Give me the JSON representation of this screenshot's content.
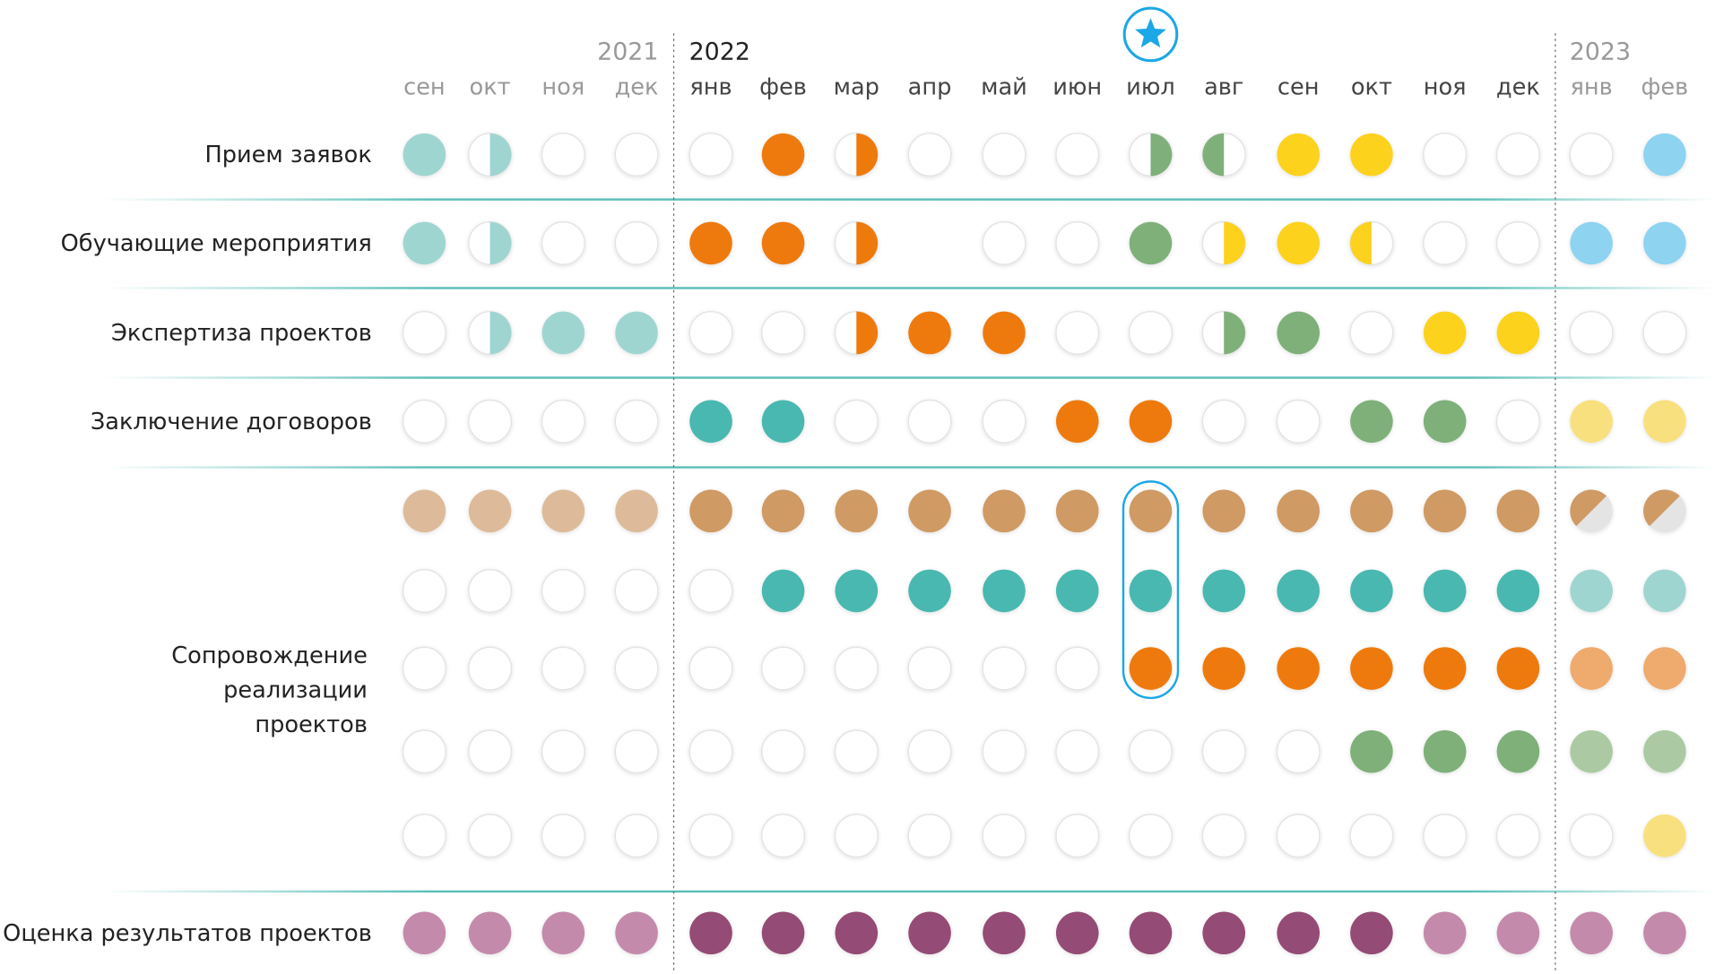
{
  "years": [
    {
      "year": "2021",
      "months": [
        "сен",
        "окт",
        "ноя",
        "дек"
      ]
    },
    {
      "year": "2022",
      "months": [
        "янв",
        "фев",
        "мар",
        "апр",
        "май",
        "июн",
        "июл",
        "авг",
        "сен",
        "окт",
        "ноя",
        "дек"
      ]
    },
    {
      "year": "2023",
      "months": [
        "янв",
        "фев"
      ]
    }
  ],
  "palette": {
    "tl": "#9fd5d1",
    "t": "#49b8b0",
    "o": "#ee7a0c",
    "ol": "#efaa6e",
    "g": "#7fb07a",
    "gl": "#abcaa3",
    "y": "#fcd21c",
    "yl": "#f8e07f",
    "b": "#8ed3f0",
    "tanl": "#ddbb9a",
    "tan": "#cf9a64",
    "pl": "#c48aab",
    "pd": "#944c74",
    "grey": "#e4e4e4"
  },
  "rows": [
    {
      "label": [
        "Прием заявок"
      ],
      "tracks": [
        [
          "tl",
          "tl/R",
          "e",
          "e",
          "e",
          "o",
          "o/R",
          "e",
          "e",
          "e",
          "g/R",
          "g/L",
          "y",
          "y",
          "e",
          "e",
          "e",
          "b"
        ]
      ]
    },
    {
      "label": [
        "Обучающие мероприятия"
      ],
      "tracks": [
        [
          "tl",
          "tl/R",
          "e",
          "e",
          "o",
          "o",
          "o/R",
          null,
          "e",
          "e",
          "g",
          "y/R",
          "y",
          "y/L",
          "e",
          "e",
          "b",
          "b"
        ]
      ]
    },
    {
      "label": [
        "Экспертиза проектов"
      ],
      "tracks": [
        [
          "e",
          "tl/R",
          "tl",
          "tl",
          "e",
          "e",
          "o/R",
          "o",
          "o",
          "e",
          "e",
          "g/R",
          "g",
          "e",
          "y",
          "y",
          "e",
          "e"
        ]
      ]
    },
    {
      "label": [
        "Заключение договоров"
      ],
      "tracks": [
        [
          "e",
          "e",
          "e",
          "e",
          "t",
          "t",
          "e",
          "e",
          "e",
          "o",
          "o",
          "e",
          "e",
          "g",
          "g",
          "e",
          "yl",
          "yl"
        ]
      ]
    },
    {
      "label": [
        "Сопровождение",
        "реализации",
        "проектов"
      ],
      "tracks": [
        [
          "tanl",
          "tanl",
          "tanl",
          "tanl",
          "tan",
          "tan",
          "tan",
          "tan",
          "tan",
          "tan",
          "tan",
          "tan",
          "tan",
          "tan",
          "tan",
          "tan",
          "tan/D",
          "tan/D"
        ],
        [
          "e",
          "e",
          "e",
          "e",
          "e",
          "t",
          "t",
          "t",
          "t",
          "t",
          "t",
          "t",
          "t",
          "t",
          "t",
          "t",
          "tl",
          "tl"
        ],
        [
          "e",
          "e",
          "e",
          "e",
          "e",
          "e",
          "e",
          "e",
          "e",
          "e",
          "o",
          "o",
          "o",
          "o",
          "o",
          "o",
          "ol",
          "ol"
        ],
        [
          "e",
          "e",
          "e",
          "e",
          "e",
          "e",
          "e",
          "e",
          "e",
          "e",
          "e",
          "e",
          "e",
          "g",
          "g",
          "g",
          "gl",
          "gl"
        ],
        [
          "e",
          "e",
          "e",
          "e",
          "e",
          "e",
          "e",
          "e",
          "e",
          "e",
          "e",
          "e",
          "e",
          "e",
          "e",
          "e",
          "e",
          "yl"
        ]
      ]
    },
    {
      "label": [
        "Оценка результатов проектов"
      ],
      "tracks": [
        [
          "pl",
          "pl",
          "pl",
          "pl",
          "pd",
          "pd",
          "pd",
          "pd",
          "pd",
          "pd",
          "pd",
          "pd",
          "pd",
          "pd",
          "pl",
          "pl",
          "pl",
          "pl"
        ]
      ]
    }
  ]
}
